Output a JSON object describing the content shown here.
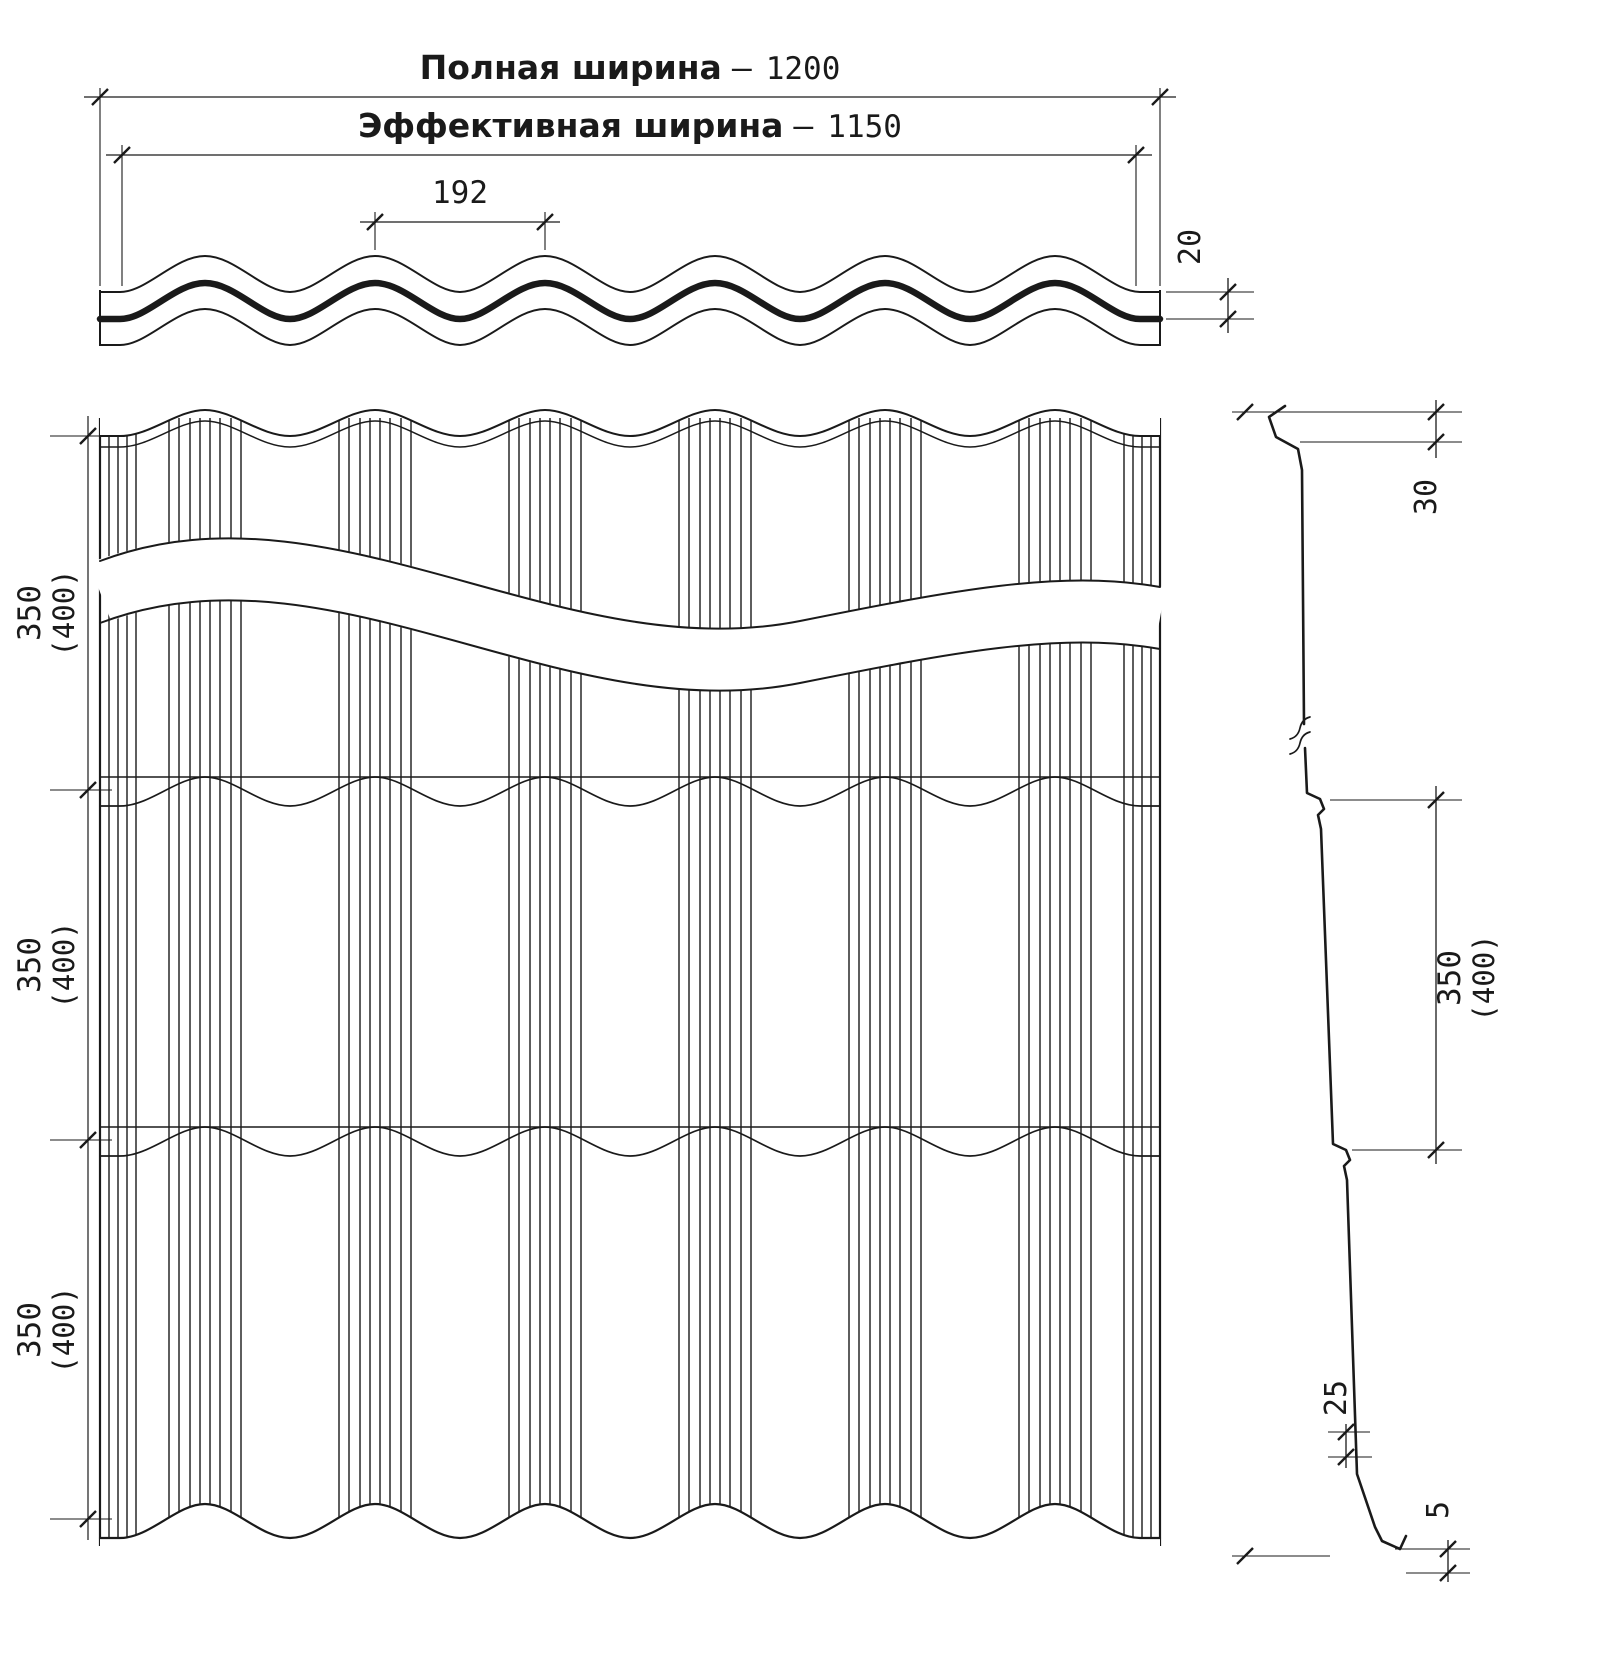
{
  "top_view": {
    "full_width": {
      "label": "Полная ширина",
      "sep": "–",
      "value": "1200"
    },
    "effective_width": {
      "label": "Эффективная ширина",
      "sep": "–",
      "value": "1150"
    },
    "wave_pitch": "192",
    "profile_height": "20"
  },
  "plan_view": {
    "row_step": "350",
    "row_step_alt": "(400)"
  },
  "side_view": {
    "top_fold": "30",
    "row_step": "350",
    "row_step_alt": "(400)",
    "bottom_fold": "25",
    "edge_fold": "5"
  },
  "colors": {
    "line": "#1a1a1a",
    "background": "#ffffff"
  }
}
